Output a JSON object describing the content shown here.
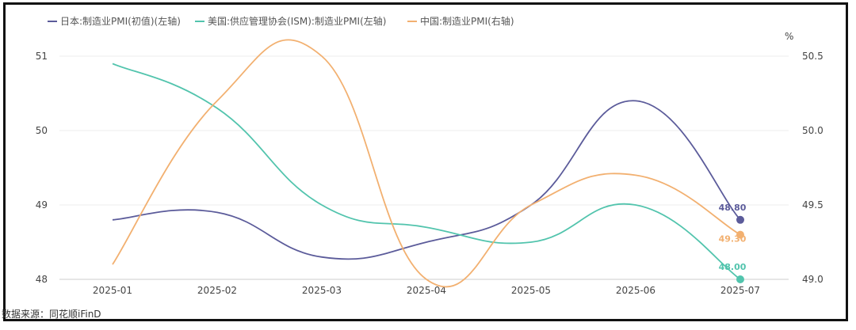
{
  "chart_data": {
    "type": "line",
    "categories": [
      "2025-01",
      "2025-02",
      "2025-03",
      "2025-04",
      "2025-05",
      "2025-06",
      "2025-07"
    ],
    "series": [
      {
        "name": "日本:制造业PMI(初值)(左轴)",
        "axis": "left",
        "color": "#5b5b9a",
        "values": [
          48.8,
          48.9,
          48.3,
          48.5,
          49.0,
          50.4,
          48.8
        ],
        "end_label": "48.80"
      },
      {
        "name": "美国:供应管理协会(ISM):制造业PMI(左轴)",
        "axis": "left",
        "color": "#52c4ad",
        "values": [
          50.9,
          50.3,
          49.0,
          48.7,
          48.5,
          49.0,
          48.0
        ],
        "end_label": "48.00"
      },
      {
        "name": "中国:制造业PMI(右轴)",
        "axis": "right",
        "color": "#f2b070",
        "values": [
          49.1,
          50.2,
          50.5,
          49.0,
          49.5,
          49.7,
          49.3
        ],
        "end_label": "49.30"
      }
    ],
    "y_left": {
      "range": [
        48,
        51
      ],
      "ticks": [
        "48",
        "49",
        "50",
        "51"
      ]
    },
    "y_right": {
      "range": [
        49.0,
        50.5
      ],
      "ticks": [
        "49.0",
        "49.5",
        "50.0",
        "50.5"
      ],
      "unit": "%"
    },
    "legend_position": "top-left",
    "grid": true
  },
  "source_text": "数据来源：同花顺iFinD"
}
